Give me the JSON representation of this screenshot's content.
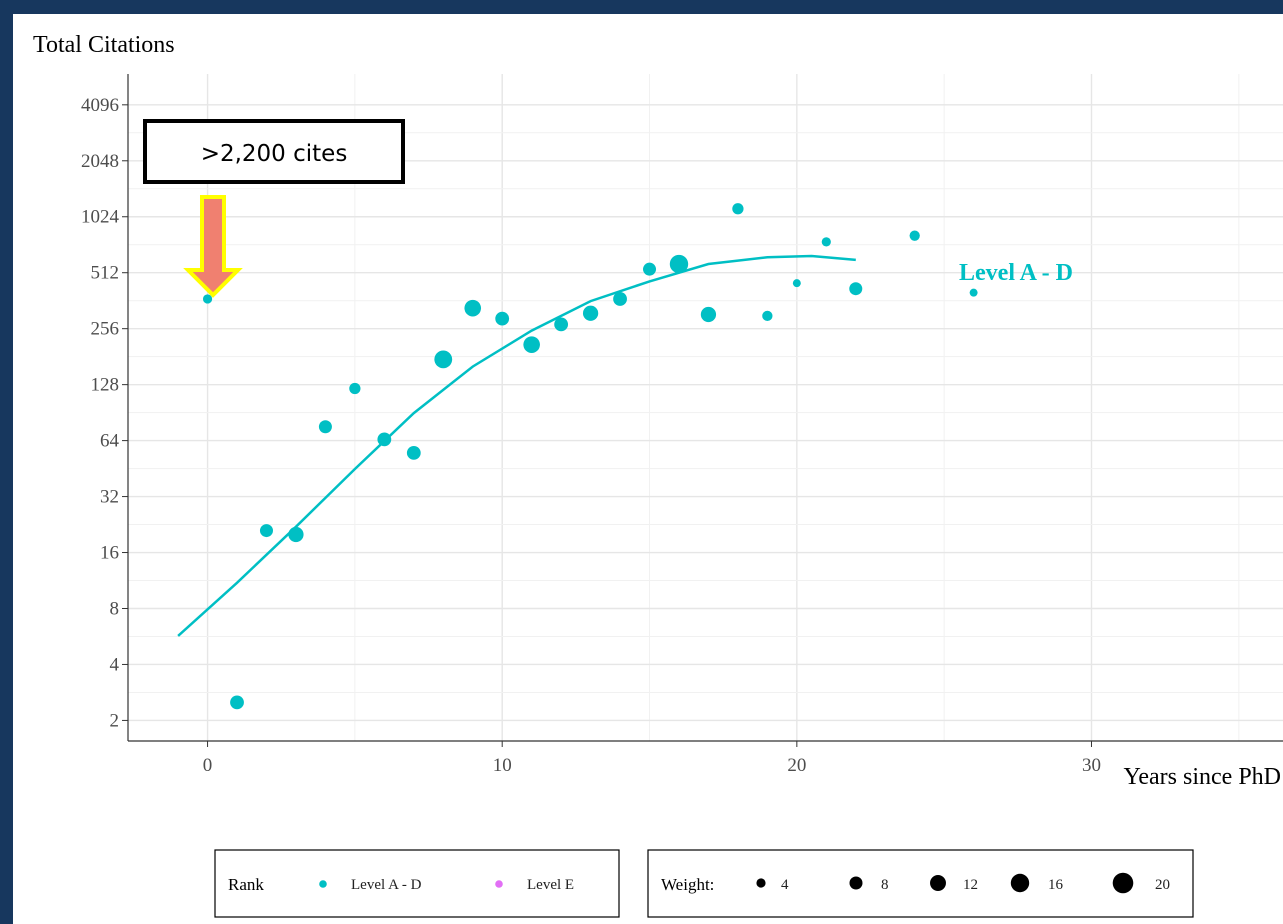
{
  "chart_data": {
    "type": "scatter",
    "ylabel": "Total Citations",
    "xlabel": "Years since PhD",
    "x_ticks": [
      0,
      10,
      20,
      30
    ],
    "y_ticks": [
      2,
      4,
      8,
      16,
      32,
      64,
      128,
      256,
      512,
      1024,
      2048,
      4096
    ],
    "y_scale": "log2",
    "xlim": [
      -2.7,
      36.5
    ],
    "ylim": [
      1.55,
      6000
    ],
    "grid": true,
    "series": [
      {
        "name": "Level A - D",
        "color": "#00bfc4",
        "points": [
          {
            "x": 0,
            "y": 370,
            "weight": 4
          },
          {
            "x": 1,
            "y": 2.5,
            "weight": 9
          },
          {
            "x": 2,
            "y": 21,
            "weight": 8
          },
          {
            "x": 3,
            "y": 20,
            "weight": 11
          },
          {
            "x": 4,
            "y": 76,
            "weight": 8
          },
          {
            "x": 5,
            "y": 122,
            "weight": 6
          },
          {
            "x": 6,
            "y": 65,
            "weight": 9
          },
          {
            "x": 7,
            "y": 55,
            "weight": 9
          },
          {
            "x": 8,
            "y": 175,
            "weight": 15
          },
          {
            "x": 9,
            "y": 330,
            "weight": 13
          },
          {
            "x": 10,
            "y": 290,
            "weight": 9
          },
          {
            "x": 11,
            "y": 210,
            "weight": 13
          },
          {
            "x": 12,
            "y": 270,
            "weight": 9
          },
          {
            "x": 13,
            "y": 310,
            "weight": 11
          },
          {
            "x": 14,
            "y": 370,
            "weight": 9
          },
          {
            "x": 15,
            "y": 535,
            "weight": 8
          },
          {
            "x": 16,
            "y": 570,
            "weight": 16
          },
          {
            "x": 17,
            "y": 305,
            "weight": 11
          },
          {
            "x": 18,
            "y": 1130,
            "weight": 6
          },
          {
            "x": 19,
            "y": 300,
            "weight": 5
          },
          {
            "x": 20,
            "y": 450,
            "weight": 3
          },
          {
            "x": 21,
            "y": 750,
            "weight": 4
          },
          {
            "x": 22,
            "y": 420,
            "weight": 8
          },
          {
            "x": 24,
            "y": 810,
            "weight": 5
          },
          {
            "x": 26,
            "y": 400,
            "weight": 3
          }
        ]
      }
    ],
    "trend_line": [
      {
        "x": -1,
        "y": 5.7
      },
      {
        "x": 1,
        "y": 11
      },
      {
        "x": 3,
        "y": 22
      },
      {
        "x": 5,
        "y": 45
      },
      {
        "x": 7,
        "y": 90
      },
      {
        "x": 9,
        "y": 160
      },
      {
        "x": 11,
        "y": 250
      },
      {
        "x": 13,
        "y": 360
      },
      {
        "x": 15,
        "y": 460
      },
      {
        "x": 17,
        "y": 570
      },
      {
        "x": 19,
        "y": 620
      },
      {
        "x": 20.5,
        "y": 630
      },
      {
        "x": 22,
        "y": 600
      }
    ],
    "series_label": "Level A - D",
    "callout": {
      "text": ">2,200 cites",
      "arrow_fill": "#f08070",
      "arrow_stroke": "#ffff00"
    },
    "legend": {
      "rank_title": "Rank",
      "rank_items": [
        {
          "label": "Level A - D",
          "color": "#00bfc4"
        },
        {
          "label": "Level E",
          "color": "#e26ff5"
        }
      ],
      "weight_title": "Weight:",
      "weight_items": [
        {
          "label": "4",
          "weight": 4
        },
        {
          "label": "8",
          "weight": 8
        },
        {
          "label": "12",
          "weight": 12
        },
        {
          "label": "16",
          "weight": 16
        },
        {
          "label": "20",
          "weight": 20
        }
      ]
    }
  }
}
